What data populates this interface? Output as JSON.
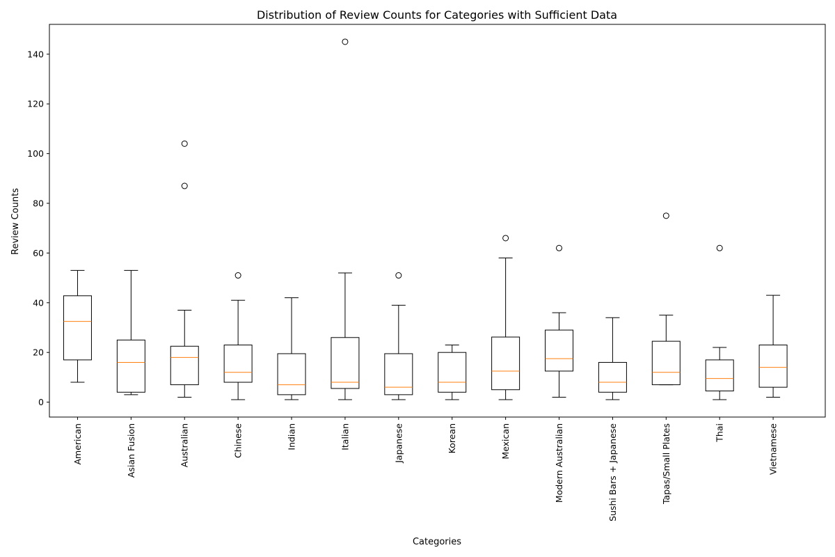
{
  "chart_data": {
    "type": "boxplot",
    "title": "Distribution of Review Counts for Categories with Sufficient Data",
    "xlabel": "Categories",
    "ylabel": "Review Counts",
    "ylim": [
      -6,
      152
    ],
    "yticks": [
      0,
      20,
      40,
      60,
      80,
      100,
      120,
      140
    ],
    "grid": false,
    "colors": {
      "box": "#000000",
      "median": "#ff7f0e",
      "background": "#ffffff"
    },
    "categories": [
      "American",
      "Asian Fusion",
      "Australian",
      "Chinese",
      "Indian",
      "Italian",
      "Japanese",
      "Korean",
      "Mexican",
      "Modern Australian",
      "Sushi Bars + Japanese",
      "Tapas/Small Plates",
      "Thai",
      "Vietnamese"
    ],
    "boxes": [
      {
        "whisker_low": 8,
        "q1": 17,
        "median": 32.5,
        "q3": 42.8,
        "whisker_high": 53,
        "outliers": []
      },
      {
        "whisker_low": 3,
        "q1": 4,
        "median": 16,
        "q3": 25,
        "whisker_high": 53,
        "outliers": []
      },
      {
        "whisker_low": 2,
        "q1": 7,
        "median": 18,
        "q3": 22.5,
        "whisker_high": 37,
        "outliers": [
          87,
          104
        ]
      },
      {
        "whisker_low": 1,
        "q1": 8,
        "median": 12,
        "q3": 23,
        "whisker_high": 41,
        "outliers": [
          51
        ]
      },
      {
        "whisker_low": 1,
        "q1": 3,
        "median": 7,
        "q3": 19.5,
        "whisker_high": 42,
        "outliers": []
      },
      {
        "whisker_low": 1,
        "q1": 5.5,
        "median": 8,
        "q3": 26,
        "whisker_high": 52,
        "outliers": [
          145
        ]
      },
      {
        "whisker_low": 1,
        "q1": 3,
        "median": 6,
        "q3": 19.5,
        "whisker_high": 39,
        "outliers": [
          51
        ]
      },
      {
        "whisker_low": 1,
        "q1": 4,
        "median": 8,
        "q3": 20,
        "whisker_high": 23,
        "outliers": []
      },
      {
        "whisker_low": 1,
        "q1": 5,
        "median": 12.5,
        "q3": 26.2,
        "whisker_high": 58,
        "outliers": [
          66
        ]
      },
      {
        "whisker_low": 2,
        "q1": 12.5,
        "median": 17.5,
        "q3": 29,
        "whisker_high": 36,
        "outliers": [
          62
        ]
      },
      {
        "whisker_low": 1,
        "q1": 4,
        "median": 8,
        "q3": 16,
        "whisker_high": 34,
        "outliers": []
      },
      {
        "whisker_low": 7,
        "q1": 7,
        "median": 12,
        "q3": 24.5,
        "whisker_high": 35,
        "outliers": [
          75
        ]
      },
      {
        "whisker_low": 1,
        "q1": 4.5,
        "median": 9.5,
        "q3": 17,
        "whisker_high": 22,
        "outliers": [
          62
        ]
      },
      {
        "whisker_low": 2,
        "q1": 6,
        "median": 14,
        "q3": 23,
        "whisker_high": 43,
        "outliers": []
      }
    ]
  }
}
